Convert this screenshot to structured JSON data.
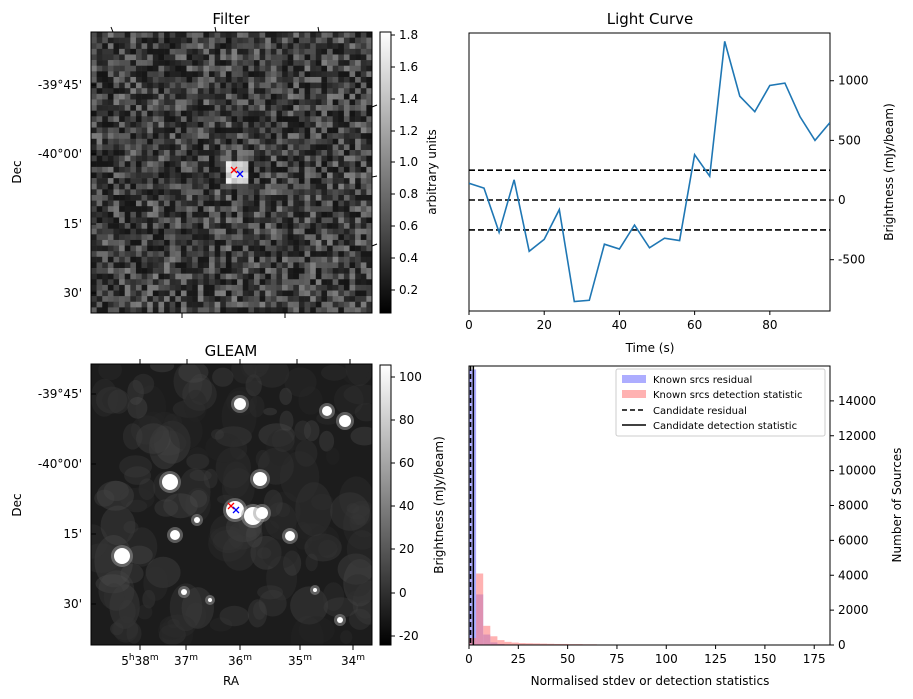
{
  "panels": {
    "filter": {
      "title": "Filter",
      "ylabel": "Dec",
      "cbar_label": "arbitrary units",
      "dec_ticks": [
        "-39°45'",
        "-40°00'",
        "15'",
        "30'"
      ],
      "cbar_ticks": [
        "1.8",
        "1.6",
        "1.4",
        "1.2",
        "1.0",
        "0.8",
        "0.6",
        "0.4",
        "0.2"
      ]
    },
    "gleam": {
      "title": "GLEAM",
      "ylabel": "Dec",
      "xlabel": "RA",
      "cbar_label": "Brightness (mJy/beam)",
      "dec_ticks": [
        "-39°45'",
        "-40°00'",
        "15'",
        "30'"
      ],
      "cbar_ticks": [
        "100",
        "80",
        "60",
        "40",
        "20",
        "0",
        "-20"
      ],
      "ra_ticks": [
        {
          "main": "5",
          "h": "h",
          "mm": "38",
          "m": "m"
        },
        {
          "main": "37",
          "m": "m"
        },
        {
          "main": "36",
          "m": "m"
        },
        {
          "main": "35",
          "m": "m"
        },
        {
          "main": "34",
          "m": "m"
        }
      ]
    },
    "light_curve": {
      "title": "Light Curve",
      "xlabel": "Time (s)",
      "ylabel": "Brightness (mJy/beam)",
      "xticks": [
        "0",
        "20",
        "40",
        "60",
        "80"
      ],
      "yticks": [
        "1000",
        "500",
        "0",
        "-500"
      ]
    },
    "histogram": {
      "xlabel": "Normalised stdev or detection statistics",
      "ylabel_left": "Brightness (mJy/beam)",
      "ylabel_right": "Number of Sources",
      "xticks": [
        "0",
        "25",
        "50",
        "75",
        "100",
        "125",
        "150",
        "175"
      ],
      "yticks": [
        "0",
        "2000",
        "4000",
        "6000",
        "8000",
        "10000",
        "12000",
        "14000"
      ],
      "legend": [
        {
          "label": "Known srcs residual",
          "kind": "patch",
          "color": "#7777ff"
        },
        {
          "label": "Known srcs detection statistic",
          "kind": "patch",
          "color": "#ff7f7f"
        },
        {
          "label": "Candidate residual",
          "kind": "dashed",
          "color": "#000000"
        },
        {
          "label": "Candidate detection statistic",
          "kind": "solid",
          "color": "#000000"
        }
      ]
    }
  },
  "chart_data": [
    {
      "type": "heatmap",
      "title": "Filter",
      "ylabel": "Dec",
      "colorbar": {
        "label": "arbitrary units",
        "range": [
          0.05,
          1.82
        ],
        "cmap": "gray"
      },
      "markers": [
        {
          "symbol": "x",
          "color": "#ff0000"
        },
        {
          "symbol": "x",
          "color": "#0000ff"
        }
      ]
    },
    {
      "type": "line",
      "title": "Light Curve",
      "xlabel": "Time (s)",
      "ylabel": "Brightness (mJy/beam)",
      "xlim": [
        0,
        96
      ],
      "ylim": [
        -930,
        1400
      ],
      "x": [
        0,
        4,
        8,
        12,
        16,
        20,
        24,
        28,
        32,
        36,
        40,
        44,
        48,
        52,
        56,
        60,
        64,
        68,
        72,
        76,
        80,
        84,
        88,
        92,
        96
      ],
      "y": [
        140,
        100,
        -270,
        170,
        -430,
        -330,
        -80,
        -850,
        -840,
        -370,
        -410,
        -210,
        -400,
        -320,
        -340,
        380,
        200,
        1330,
        870,
        740,
        960,
        980,
        700,
        500,
        650
      ],
      "hlines": [
        {
          "y": 250,
          "style": "dashed"
        },
        {
          "y": 0,
          "style": "dashed"
        },
        {
          "y": -250,
          "style": "dashed"
        }
      ],
      "color": "#1f77b4",
      "grid": false
    },
    {
      "type": "heatmap",
      "title": "GLEAM",
      "xlabel": "RA",
      "ylabel": "Dec",
      "colorbar": {
        "label": "Brightness (mJy/beam)",
        "range": [
          -25,
          105
        ],
        "cmap": "gray"
      },
      "markers": [
        {
          "symbol": "x",
          "color": "#ff0000"
        },
        {
          "symbol": "x",
          "color": "#0000ff"
        }
      ]
    },
    {
      "type": "bar",
      "xlabel": "Normalised stdev or detection statistics",
      "ylabel": "Number of Sources",
      "xlim": [
        0,
        183
      ],
      "ylim": [
        0,
        16000
      ],
      "bin_width": 3.6,
      "series": [
        {
          "name": "Known srcs residual",
          "color": "#7777ff",
          "bins": [
            0,
            3.6,
            7.2,
            10.8,
            14.4,
            18,
            21.6
          ],
          "counts": [
            15800,
            2900,
            600,
            150,
            60,
            30,
            15
          ]
        },
        {
          "name": "Known srcs detection statistic",
          "color": "#ff7f7f",
          "bins": [
            0,
            3.6,
            7.2,
            10.8,
            14.4,
            18,
            21.6,
            25.2,
            28.8,
            32.4,
            36,
            39.6,
            43.2,
            46.8,
            50.4,
            54,
            57.6,
            61.2,
            64.8,
            68.4,
            72,
            75.6,
            79.2,
            82.8,
            86.4,
            90,
            93.6,
            97.2,
            100.8,
            165.6
          ],
          "counts": [
            400,
            4100,
            1100,
            500,
            280,
            180,
            140,
            110,
            100,
            90,
            80,
            70,
            60,
            60,
            50,
            50,
            40,
            40,
            30,
            30,
            30,
            20,
            20,
            20,
            20,
            15,
            15,
            15,
            15,
            10
          ]
        }
      ],
      "vlines": [
        {
          "x": 0.8,
          "style": "dashed",
          "name": "Candidate residual"
        },
        {
          "x": 2.2,
          "style": "solid",
          "name": "Candidate detection statistic"
        }
      ]
    }
  ]
}
